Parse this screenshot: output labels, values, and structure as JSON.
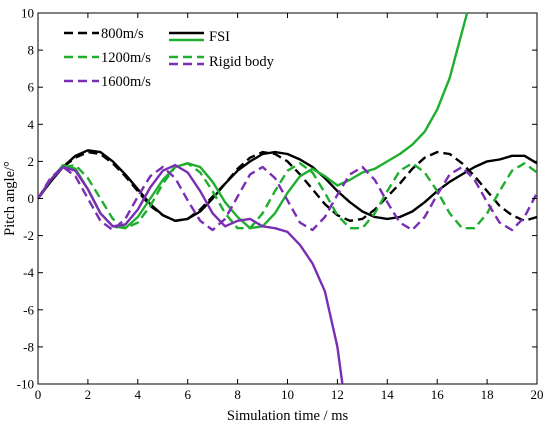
{
  "chart_data": {
    "type": "line",
    "title": "",
    "xlabel": "Simulation time / ms",
    "ylabel": "Pitch angle/°",
    "xlim": [
      0,
      20
    ],
    "ylim": [
      -10,
      10
    ],
    "xticks": [
      "0",
      "2",
      "4",
      "6",
      "8",
      "10",
      "12",
      "14",
      "16",
      "18",
      "20"
    ],
    "yticks": [
      "10",
      "8",
      "6",
      "4",
      "2",
      "0",
      "-2",
      "-4",
      "-6",
      "-8",
      "-10"
    ],
    "grid": false,
    "legend": {
      "placement": "top-left",
      "velocity_entries": [
        "800m/s",
        "1200m/s",
        "1600m/s"
      ],
      "method_entries": [
        "FSI",
        "Rigid body"
      ]
    },
    "colors": {
      "800m/s": "#000000",
      "1200m/s": "#1fae2e",
      "1600m/s": "#7a2eb3"
    },
    "series": [
      {
        "speed": "800m/s",
        "model": "FSI",
        "color": "#000000",
        "style": "solid",
        "x": [
          0,
          0.5,
          1,
          1.5,
          2,
          2.5,
          3,
          3.5,
          4,
          4.5,
          5,
          5.5,
          6,
          6.5,
          7,
          7.5,
          8,
          8.5,
          9,
          9.5,
          10,
          10.5,
          11,
          11.5,
          12,
          12.5,
          13,
          13.5,
          14,
          14.5,
          15,
          15.5,
          16,
          16.5,
          17,
          17.5,
          18,
          18.5,
          19,
          19.5,
          20
        ],
        "y": [
          0,
          0.9,
          1.7,
          2.3,
          2.6,
          2.5,
          2.0,
          1.3,
          0.5,
          -0.3,
          -0.9,
          -1.2,
          -1.1,
          -0.7,
          0.0,
          0.8,
          1.5,
          2.0,
          2.4,
          2.5,
          2.4,
          2.1,
          1.7,
          1.1,
          0.4,
          -0.2,
          -0.7,
          -1.0,
          -1.1,
          -1.0,
          -0.7,
          -0.2,
          0.4,
          0.9,
          1.3,
          1.7,
          2.0,
          2.1,
          2.3,
          2.3,
          1.9
        ]
      },
      {
        "speed": "800m/s",
        "model": "Rigid body",
        "color": "#000000",
        "style": "dashed",
        "x": [
          0,
          0.5,
          1,
          1.5,
          2,
          2.5,
          3,
          3.5,
          4,
          4.5,
          5,
          5.5,
          6,
          6.5,
          7,
          7.5,
          8,
          8.5,
          9,
          9.5,
          10,
          10.5,
          11,
          11.5,
          12,
          12.5,
          13,
          13.5,
          14,
          14.5,
          15,
          15.5,
          16,
          16.5,
          17,
          17.5,
          18,
          18.5,
          19,
          19.5,
          20
        ],
        "y": [
          0,
          0.9,
          1.7,
          2.2,
          2.5,
          2.4,
          1.9,
          1.2,
          0.4,
          -0.4,
          -0.9,
          -1.2,
          -1.1,
          -0.6,
          0.1,
          0.8,
          1.6,
          2.2,
          2.5,
          2.4,
          2.0,
          1.3,
          0.5,
          -0.3,
          -0.9,
          -1.2,
          -1.1,
          -0.6,
          0.1,
          0.8,
          1.6,
          2.2,
          2.5,
          2.4,
          1.9,
          1.2,
          0.4,
          -0.4,
          -0.9,
          -1.2,
          -1.0
        ]
      },
      {
        "speed": "1200m/s",
        "model": "FSI",
        "color": "#1fae2e",
        "style": "solid",
        "x": [
          0,
          0.5,
          1,
          1.5,
          2,
          2.5,
          3,
          3.5,
          4,
          4.5,
          5,
          5.5,
          6,
          6.5,
          7,
          7.5,
          8,
          8.5,
          9,
          9.5,
          10,
          10.5,
          11,
          11.5,
          12,
          12.5,
          13,
          13.5,
          14,
          14.5,
          15,
          15.5,
          16,
          16.5,
          17,
          17.2
        ],
        "y": [
          0,
          1.0,
          1.8,
          1.6,
          0.5,
          -0.8,
          -1.5,
          -1.6,
          -1.0,
          0.0,
          1.0,
          1.7,
          1.9,
          1.7,
          0.9,
          -0.2,
          -1.0,
          -1.6,
          -1.5,
          -0.8,
          0.3,
          1.2,
          1.6,
          1.2,
          0.7,
          1.0,
          1.4,
          1.6,
          2.0,
          2.4,
          2.9,
          3.6,
          4.8,
          6.5,
          9.0,
          10.0
        ]
      },
      {
        "speed": "1200m/s",
        "model": "Rigid body",
        "color": "#1fae2e",
        "style": "dashed",
        "x": [
          0,
          0.5,
          1,
          1.5,
          2,
          2.5,
          3,
          3.5,
          4,
          4.5,
          5,
          5.5,
          6,
          6.5,
          7,
          7.5,
          8,
          8.5,
          9,
          9.5,
          10,
          10.5,
          11,
          11.5,
          12,
          12.5,
          13,
          13.5,
          14,
          14.5,
          15,
          15.5,
          16,
          16.5,
          17,
          17.5,
          18,
          18.5,
          19,
          19.5,
          20
        ],
        "y": [
          0,
          1.0,
          1.7,
          1.8,
          1.1,
          0.0,
          -1.1,
          -1.6,
          -1.3,
          -0.4,
          0.8,
          1.7,
          1.9,
          1.4,
          0.4,
          -0.8,
          -1.6,
          -1.6,
          -0.8,
          0.4,
          1.5,
          1.9,
          1.4,
          0.3,
          -0.9,
          -1.6,
          -1.6,
          -0.8,
          0.4,
          1.5,
          1.9,
          1.4,
          0.4,
          -0.8,
          -1.6,
          -1.6,
          -0.8,
          0.4,
          1.5,
          1.9,
          1.4
        ]
      },
      {
        "speed": "1600m/s",
        "model": "FSI",
        "color": "#7a2eb3",
        "style": "solid",
        "x": [
          0,
          0.5,
          1,
          1.5,
          2,
          2.5,
          3,
          3.5,
          4,
          4.5,
          5,
          5.5,
          6,
          6.5,
          7,
          7.5,
          8,
          8.5,
          9,
          9.5,
          10,
          10.5,
          11,
          11.5,
          12,
          12.2
        ],
        "y": [
          0,
          1.0,
          1.7,
          1.5,
          0.5,
          -0.8,
          -1.5,
          -1.4,
          -0.6,
          0.6,
          1.5,
          1.8,
          1.4,
          0.4,
          -0.8,
          -1.5,
          -1.2,
          -1.1,
          -1.5,
          -1.6,
          -1.8,
          -2.5,
          -3.5,
          -5.0,
          -8.0,
          -10.0
        ]
      },
      {
        "speed": "1600m/s",
        "model": "Rigid body",
        "color": "#7a2eb3",
        "style": "dashed",
        "x": [
          0,
          0.5,
          1,
          1.5,
          2,
          2.5,
          3,
          3.5,
          4,
          4.5,
          5,
          5.5,
          6,
          6.5,
          7,
          7.5,
          8,
          8.5,
          9,
          9.5,
          10,
          10.5,
          11,
          11.5,
          12,
          12.5,
          13,
          13.5,
          14,
          14.5,
          15,
          15.5,
          16,
          16.5,
          17,
          17.5,
          18,
          18.5,
          19,
          19.5,
          20
        ],
        "y": [
          0,
          1.1,
          1.7,
          1.2,
          0.0,
          -1.2,
          -1.7,
          -1.1,
          0.1,
          1.2,
          1.7,
          1.1,
          -0.1,
          -1.2,
          -1.7,
          -1.1,
          0.1,
          1.3,
          1.7,
          1.1,
          -0.1,
          -1.3,
          -1.7,
          -1.0,
          0.2,
          1.3,
          1.7,
          1.0,
          -0.2,
          -1.3,
          -1.7,
          -1.0,
          0.2,
          1.3,
          1.7,
          1.0,
          -0.2,
          -1.3,
          -1.7,
          -1.0,
          0.3
        ]
      }
    ]
  }
}
